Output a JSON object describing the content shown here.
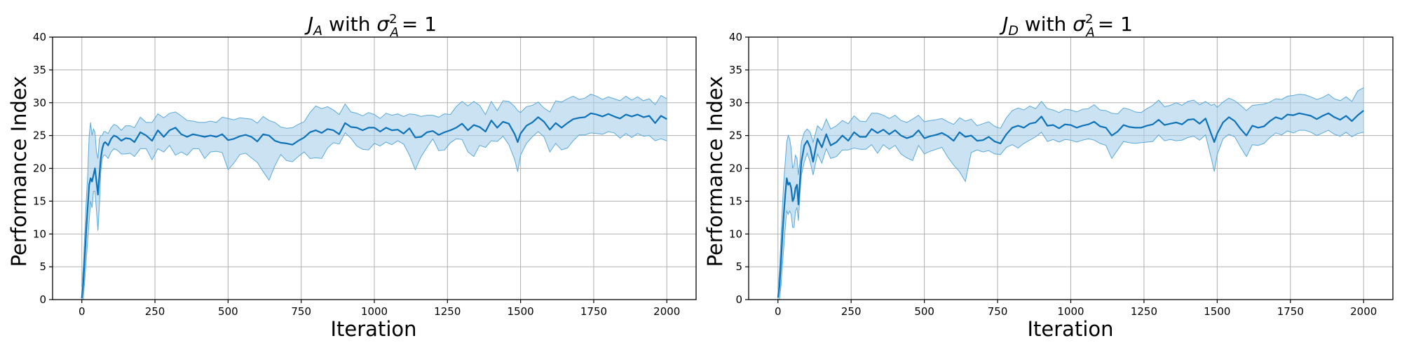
{
  "colors": {
    "line": "#0d72b8",
    "band": "#a9cfe9",
    "band_edge": "#5aa9d8",
    "grid": "#b0b0b0"
  },
  "chart_data": [
    {
      "type": "line",
      "title_main": "J",
      "title_sub": "A",
      "title_rest": " with ",
      "title_sigma": "σ",
      "title_sigma_sup": "2",
      "title_sigma_sub": "A",
      "title_value": "=  1",
      "xlabel": "Iteration",
      "ylabel": "Performance Index",
      "xlim": [
        -100,
        2100
      ],
      "ylim": [
        0,
        40
      ],
      "xticks": [
        0,
        250,
        500,
        750,
        1000,
        1250,
        1500,
        1750,
        2000
      ],
      "yticks": [
        0,
        5,
        10,
        15,
        20,
        25,
        30,
        35,
        40
      ],
      "grid": true,
      "series": [
        {
          "x": [
            0,
            5,
            10,
            15,
            20,
            25,
            30,
            35,
            40,
            45,
            50,
            55,
            60,
            65,
            70,
            75,
            80,
            90,
            100,
            110,
            120,
            135,
            150,
            165,
            180,
            200,
            220,
            240,
            260,
            280,
            300,
            320,
            340,
            360,
            380,
            400,
            420,
            440,
            460,
            480,
            500,
            520,
            540,
            560,
            580,
            600,
            620,
            640,
            660,
            680,
            700,
            720,
            740,
            760,
            780,
            800,
            820,
            840,
            860,
            880,
            900,
            920,
            940,
            960,
            980,
            1000,
            1020,
            1040,
            1060,
            1080,
            1100,
            1120,
            1140,
            1160,
            1180,
            1200,
            1220,
            1240,
            1260,
            1280,
            1300,
            1320,
            1340,
            1360,
            1380,
            1400,
            1420,
            1440,
            1460,
            1480,
            1490,
            1500,
            1520,
            1540,
            1560,
            1580,
            1600,
            1620,
            1640,
            1660,
            1680,
            1700,
            1720,
            1740,
            1760,
            1780,
            1800,
            1820,
            1840,
            1860,
            1880,
            1900,
            1920,
            1940,
            1960,
            1980,
            2000
          ],
          "mean": [
            0.2,
            2.5,
            6.5,
            10.5,
            14,
            17.5,
            18.5,
            18,
            19,
            20,
            18,
            16,
            19,
            21.5,
            23,
            23.8,
            24,
            23.5,
            24.5,
            25,
            24.8,
            24.2,
            24.6,
            24.5,
            24,
            25.5,
            25,
            24.2,
            25.8,
            24.8,
            25.8,
            26.2,
            25.2,
            24.8,
            25.2,
            25,
            24.8,
            25,
            24.8,
            25.2,
            24.3,
            24.5,
            24.9,
            25.1,
            24.8,
            24.1,
            25.2,
            25,
            24.2,
            23.9,
            23.8,
            23.6,
            24.2,
            24.7,
            25.5,
            25.8,
            25.4,
            26,
            25.8,
            25.2,
            26.9,
            26.3,
            26.2,
            25.8,
            26.2,
            26.2,
            25.6,
            26.2,
            25.8,
            25.9,
            25.3,
            26.1,
            24.7,
            24.8,
            25.5,
            25.7,
            25.1,
            25.5,
            25.8,
            26.2,
            26.8,
            25.8,
            26.6,
            26.3,
            25.6,
            27.3,
            26.2,
            27.1,
            26.8,
            25.2,
            24,
            25.3,
            26.5,
            27,
            27.8,
            27.1,
            25.9,
            26.9,
            26.2,
            26.9,
            27.5,
            27.7,
            27.8,
            28.4,
            28.2,
            27.9,
            28.3,
            27.9,
            27.6,
            28.2,
            27.9,
            28.2,
            27.8,
            28,
            26.9,
            28,
            27.5
          ],
          "lower": [
            -0.5,
            -0.3,
            3,
            6,
            9,
            12,
            15,
            14,
            16.5,
            16.5,
            13.5,
            10.5,
            14.5,
            19.5,
            21.5,
            22,
            22,
            21.5,
            22.5,
            23,
            22.8,
            22.2,
            22.2,
            22.3,
            21.8,
            23,
            23,
            21.3,
            23,
            22.5,
            23.5,
            22,
            22.5,
            22,
            23,
            23,
            21.5,
            22.5,
            22.6,
            22.4,
            19.8,
            20.8,
            22.1,
            22.3,
            21.6,
            20.9,
            19.5,
            18.2,
            20.4,
            22.1,
            21.2,
            21,
            21.8,
            22.5,
            21.5,
            21.6,
            21.5,
            23.1,
            23.9,
            23.7,
            25.4,
            24.6,
            23.4,
            22.9,
            22.8,
            23.8,
            23.4,
            24,
            23.6,
            24.2,
            23.7,
            22,
            19.8,
            21.8,
            23.2,
            24.5,
            22.7,
            22.8,
            23.9,
            24.5,
            24.4,
            22.5,
            21.8,
            23.5,
            23.2,
            24.2,
            24.1,
            24.9,
            23.6,
            21.3,
            19.5,
            22,
            23.8,
            24.8,
            25.6,
            24.8,
            22.5,
            23.8,
            22.8,
            23.1,
            24.2,
            25.1,
            25.1,
            25.4,
            25.3,
            25.2,
            25.6,
            25.4,
            24.6,
            25.3,
            24.7,
            25.3,
            24.9,
            25,
            24.2,
            24.5,
            24.2
          ],
          "upper": [
            2,
            5,
            10,
            15,
            19,
            25,
            27,
            25,
            26,
            25.5,
            22.5,
            21.5,
            24.5,
            25,
            25,
            25.6,
            25.6,
            25.3,
            26.2,
            26.7,
            26.5,
            25.8,
            26.5,
            26.5,
            26.2,
            27.8,
            27,
            27,
            28.3,
            27.7,
            28.4,
            28.6,
            28,
            27.3,
            27.2,
            27,
            27,
            27.2,
            27,
            27.8,
            27.6,
            27.4,
            27.7,
            27.6,
            27.5,
            26.9,
            27.9,
            27.3,
            27,
            26.3,
            26.1,
            26.2,
            26.7,
            27.1,
            28.5,
            29.5,
            29.1,
            29.4,
            28.9,
            28.2,
            29.8,
            28.6,
            28.4,
            28,
            28.5,
            28.2,
            27.6,
            28.4,
            28.1,
            28.3,
            27.9,
            28.3,
            28.2,
            27.9,
            28.1,
            28.1,
            27.8,
            28.3,
            28.2,
            29.4,
            30.2,
            29.5,
            30.2,
            29.6,
            28.2,
            30.2,
            28.8,
            30.3,
            30.2,
            29.4,
            28.8,
            28.5,
            29.4,
            29.6,
            30.1,
            29.2,
            28.6,
            30.3,
            30.1,
            30.6,
            31,
            30.5,
            30.7,
            31.3,
            31,
            30.5,
            30.9,
            30.6,
            30.3,
            31,
            30.4,
            30.9,
            30.3,
            30.6,
            29.7,
            31.1,
            30.6
          ]
        }
      ]
    },
    {
      "type": "line",
      "title_main": "J",
      "title_sub": "D",
      "title_rest": " with ",
      "title_sigma": "σ",
      "title_sigma_sup": "2",
      "title_sigma_sub": "A",
      "title_value": "=  1",
      "xlabel": "Iteration",
      "ylabel": "Performance Index",
      "xlim": [
        -100,
        2100
      ],
      "ylim": [
        0,
        40
      ],
      "xticks": [
        0,
        250,
        500,
        750,
        1000,
        1250,
        1500,
        1750,
        2000
      ],
      "yticks": [
        0,
        5,
        10,
        15,
        20,
        25,
        30,
        35,
        40
      ],
      "grid": true,
      "series": [
        {
          "x": [
            0,
            5,
            10,
            15,
            20,
            25,
            30,
            35,
            40,
            45,
            50,
            55,
            60,
            65,
            70,
            75,
            80,
            90,
            100,
            110,
            120,
            135,
            150,
            165,
            180,
            200,
            220,
            240,
            260,
            280,
            300,
            320,
            340,
            360,
            380,
            400,
            420,
            440,
            460,
            480,
            500,
            520,
            540,
            560,
            580,
            600,
            620,
            640,
            660,
            680,
            700,
            720,
            740,
            760,
            780,
            800,
            820,
            840,
            860,
            880,
            900,
            920,
            940,
            960,
            980,
            1000,
            1020,
            1040,
            1060,
            1080,
            1100,
            1120,
            1140,
            1160,
            1180,
            1200,
            1220,
            1240,
            1260,
            1280,
            1300,
            1320,
            1340,
            1360,
            1380,
            1400,
            1420,
            1440,
            1460,
            1480,
            1490,
            1500,
            1520,
            1540,
            1560,
            1580,
            1600,
            1620,
            1640,
            1660,
            1680,
            1700,
            1720,
            1740,
            1760,
            1780,
            1800,
            1820,
            1840,
            1860,
            1880,
            1900,
            1920,
            1940,
            1960,
            1980,
            2000
          ],
          "mean": [
            0.3,
            2,
            5.5,
            9.5,
            13,
            16,
            18.5,
            17.5,
            17.8,
            17,
            15,
            15.5,
            17,
            17.5,
            14.5,
            18,
            21,
            23.5,
            24.2,
            23.2,
            21,
            24.5,
            23.2,
            25.2,
            23.5,
            24,
            25,
            24.2,
            25.5,
            24.8,
            24.8,
            26,
            25.4,
            25.9,
            25.2,
            25.8,
            25,
            24.6,
            24.9,
            25.8,
            24.6,
            24.9,
            25.1,
            25.4,
            24.9,
            24.2,
            25.5,
            24.8,
            25,
            24.2,
            24.3,
            24.8,
            24.1,
            23.8,
            25.2,
            26.2,
            26.5,
            26.2,
            26.8,
            27,
            27.9,
            26.5,
            26.6,
            26.1,
            26.7,
            26.6,
            26.2,
            26.5,
            26.7,
            27.1,
            26.4,
            26.2,
            25,
            25.6,
            26.6,
            26.3,
            26.2,
            26.2,
            26.5,
            26.7,
            27.4,
            26.6,
            26.8,
            27,
            26.7,
            27.4,
            27.5,
            26.8,
            27.6,
            25.2,
            24,
            25.3,
            27,
            27.8,
            27.2,
            26,
            25,
            26.5,
            26.2,
            26.4,
            27.2,
            27.8,
            27.5,
            28.2,
            28.1,
            28.4,
            28.2,
            28,
            27.5,
            28,
            28.4,
            27.8,
            27.4,
            28,
            27.2,
            28.1,
            28.8
          ],
          "lower": [
            -0.5,
            -0.4,
            2,
            5,
            8,
            11,
            13.5,
            13,
            13.5,
            13,
            11,
            11,
            13.5,
            14,
            12,
            16,
            19,
            21,
            22.3,
            21,
            19,
            22.2,
            20.8,
            23,
            21.5,
            21.8,
            22.8,
            22.8,
            23.1,
            22.9,
            22.9,
            23.6,
            22.3,
            23.6,
            22.9,
            23.5,
            22.2,
            21.6,
            21.2,
            23.5,
            22.2,
            22.6,
            22.9,
            23.2,
            21.7,
            20.5,
            19.5,
            18,
            22.4,
            22.8,
            22.5,
            22.7,
            22.2,
            22.1,
            23.2,
            23.6,
            23.1,
            23.8,
            24.3,
            24.8,
            25.5,
            24.1,
            24.4,
            24,
            24.4,
            24.3,
            24,
            24.3,
            24.5,
            24.3,
            23.8,
            23.5,
            21.5,
            22.8,
            24.1,
            23.9,
            23.8,
            23.9,
            24,
            24.1,
            25.1,
            24.2,
            24.4,
            24.2,
            24.3,
            24.7,
            24.9,
            24.3,
            25.1,
            21.5,
            19.5,
            22.1,
            24.5,
            25.2,
            24.8,
            23.2,
            21.8,
            23.6,
            23.5,
            23.8,
            24.7,
            25.4,
            25.1,
            25.7,
            25.4,
            25.8,
            25.8,
            25.5,
            25,
            25.4,
            25.8,
            25.2,
            24.9,
            25.5,
            24.8,
            25.3,
            25.5
          ],
          "upper": [
            1.5,
            4.5,
            9,
            14,
            18,
            21,
            24,
            25,
            24.5,
            23,
            20,
            20.5,
            22,
            21.5,
            19,
            21,
            24,
            25.5,
            26,
            25.5,
            24,
            26.5,
            25.8,
            27.5,
            26,
            26.5,
            27.3,
            26.8,
            28,
            27.2,
            27.1,
            28.4,
            28.4,
            28.1,
            27.6,
            28.1,
            27.3,
            27,
            27.5,
            28.1,
            27.1,
            27.3,
            27.4,
            27.6,
            27.1,
            26.7,
            27.7,
            27.2,
            27.5,
            26.5,
            26.8,
            27.1,
            26.4,
            26.1,
            27.7,
            28.8,
            29.2,
            28.9,
            29.5,
            29.1,
            30.2,
            29.1,
            28.9,
            28.5,
            29,
            28.9,
            28.6,
            29,
            29.1,
            29.7,
            28.9,
            28.8,
            28.4,
            28.3,
            29.2,
            29,
            28.6,
            28.5,
            29.1,
            29.6,
            30.4,
            29.4,
            29.6,
            30,
            29.6,
            30.2,
            30.4,
            29.7,
            30.2,
            29.6,
            29.8,
            29.3,
            30.1,
            30.7,
            30.3,
            29.6,
            28.8,
            29.6,
            29.7,
            29.8,
            30.1,
            30.6,
            30.5,
            31,
            31.1,
            31.3,
            31.2,
            30.9,
            30.5,
            30.8,
            31.3,
            30.6,
            30.3,
            30.9,
            30.2,
            31.8,
            32.3
          ]
        }
      ]
    }
  ]
}
